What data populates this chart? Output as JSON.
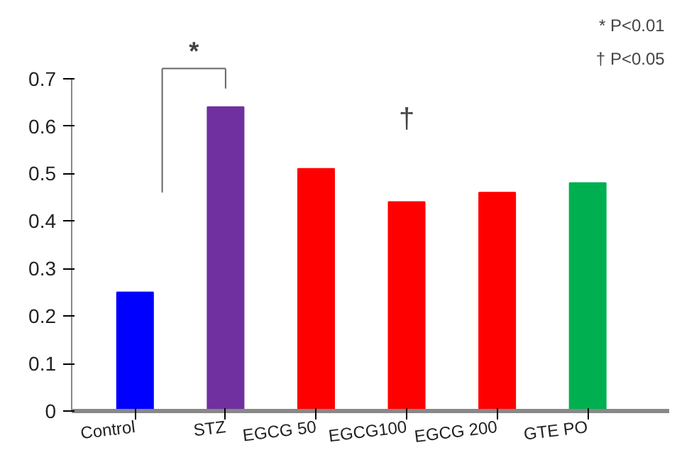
{
  "chart_data": {
    "type": "bar",
    "categories": [
      "Control",
      "STZ",
      "EGCG 50",
      "EGCG100",
      "EGCG 200",
      "GTE PO"
    ],
    "values": [
      0.25,
      0.64,
      0.51,
      0.44,
      0.46,
      0.48
    ],
    "colors": [
      "#0000ff",
      "#7030a0",
      "#ff0000",
      "#ff0000",
      "#ff0000",
      "#00b050"
    ],
    "ylim": [
      0,
      0.7
    ],
    "yticks": [
      0,
      0.1,
      0.2,
      0.3,
      0.4,
      0.5,
      0.6,
      0.7
    ],
    "grid": false,
    "annotations": [
      "*",
      "†",
      "* P<0.01",
      "† P<0.05"
    ]
  }
}
